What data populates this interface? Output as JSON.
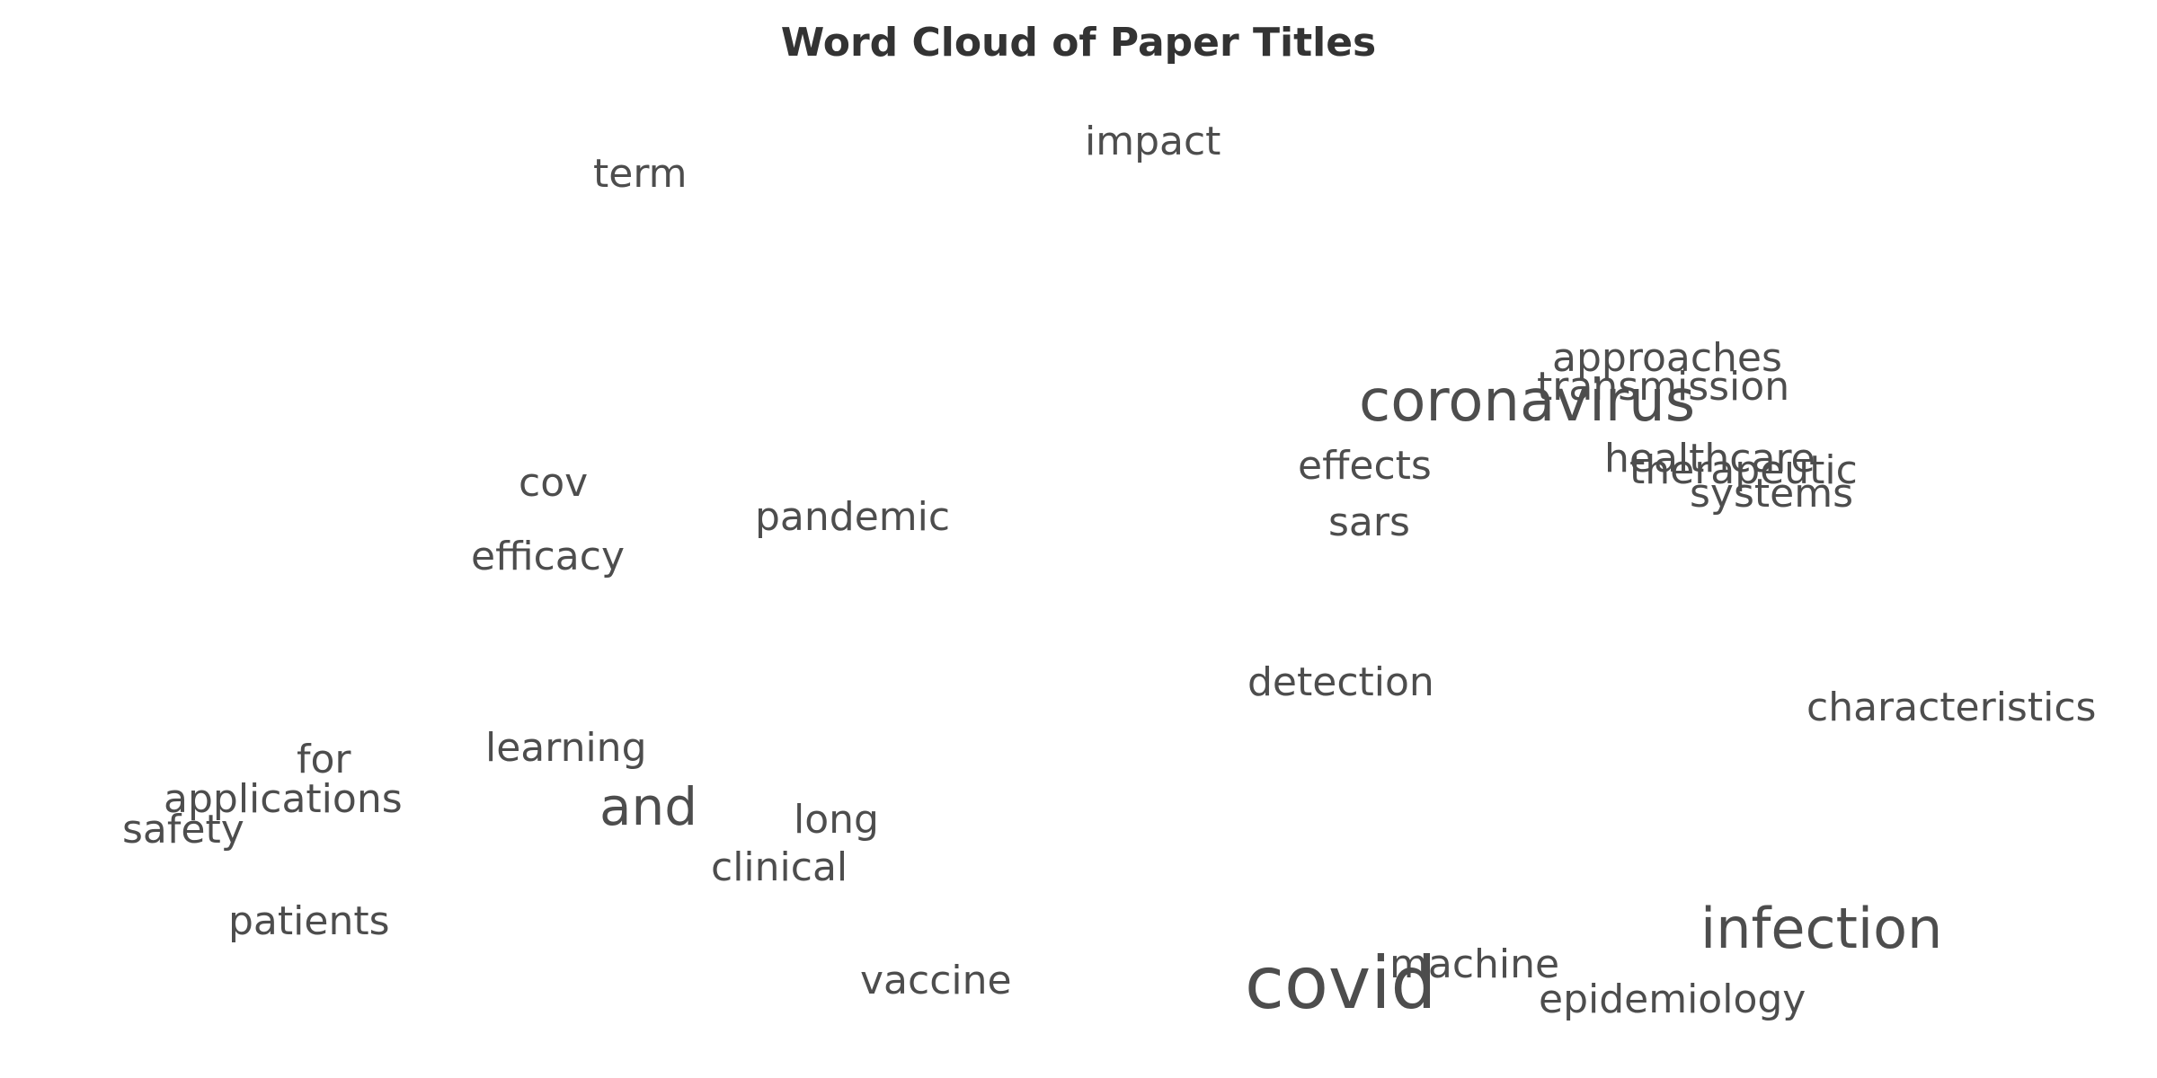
{
  "chart_data": {
    "type": "wordcloud",
    "title": "Word Cloud of Paper Titles",
    "text_color": "#4d4d4d",
    "words": [
      {
        "text": "covid",
        "weight": 1.0
      },
      {
        "text": "coronavirus",
        "weight": 0.8
      },
      {
        "text": "infection",
        "weight": 0.77
      },
      {
        "text": "and",
        "weight": 0.73
      },
      {
        "text": "impact",
        "weight": 0.55
      },
      {
        "text": "term",
        "weight": 0.55
      },
      {
        "text": "approaches",
        "weight": 0.55
      },
      {
        "text": "transmission",
        "weight": 0.55
      },
      {
        "text": "effects",
        "weight": 0.55
      },
      {
        "text": "healthcare",
        "weight": 0.55
      },
      {
        "text": "therapeutic",
        "weight": 0.55
      },
      {
        "text": "systems",
        "weight": 0.55
      },
      {
        "text": "sars",
        "weight": 0.55
      },
      {
        "text": "cov",
        "weight": 0.55
      },
      {
        "text": "pandemic",
        "weight": 0.55
      },
      {
        "text": "efficacy",
        "weight": 0.55
      },
      {
        "text": "detection",
        "weight": 0.55
      },
      {
        "text": "characteristics",
        "weight": 0.55
      },
      {
        "text": "for",
        "weight": 0.55
      },
      {
        "text": "learning",
        "weight": 0.55
      },
      {
        "text": "applications",
        "weight": 0.55
      },
      {
        "text": "safety",
        "weight": 0.55
      },
      {
        "text": "long",
        "weight": 0.55
      },
      {
        "text": "clinical",
        "weight": 0.55
      },
      {
        "text": "patients",
        "weight": 0.55
      },
      {
        "text": "vaccine",
        "weight": 0.55
      },
      {
        "text": "machine",
        "weight": 0.55
      },
      {
        "text": "epidemiology",
        "weight": 0.55
      }
    ]
  }
}
